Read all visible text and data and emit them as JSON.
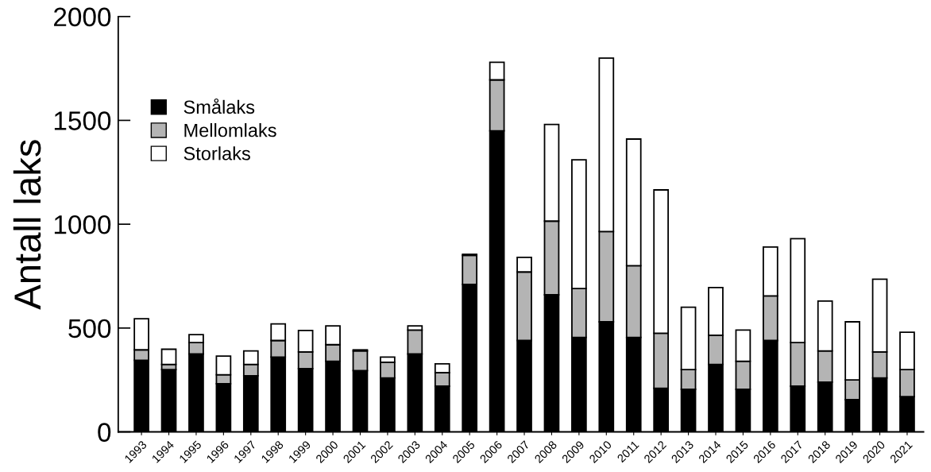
{
  "chart_data": {
    "type": "bar",
    "stacked": true,
    "ylabel": "Antall laks",
    "categories": [
      "1993",
      "1994",
      "1995",
      "1996",
      "1997",
      "1998",
      "1999",
      "2000",
      "2001",
      "2002",
      "2003",
      "2004",
      "2005",
      "2006",
      "2007",
      "2008",
      "2009",
      "2010",
      "2011",
      "2012",
      "2013",
      "2014",
      "2015",
      "2016",
      "2017",
      "2018",
      "2019",
      "2020",
      "2021"
    ],
    "series": [
      {
        "name": "Smålaks",
        "color": "#000000",
        "values": [
          345,
          300,
          375,
          232,
          270,
          360,
          305,
          340,
          295,
          260,
          375,
          220,
          710,
          1450,
          440,
          660,
          455,
          530,
          455,
          210,
          205,
          325,
          205,
          440,
          220,
          240,
          155,
          260,
          170
        ]
      },
      {
        "name": "Mellomlaks",
        "color": "#b4b4b4",
        "values": [
          50,
          25,
          55,
          43,
          55,
          80,
          80,
          80,
          95,
          75,
          115,
          65,
          140,
          245,
          330,
          355,
          235,
          435,
          345,
          265,
          95,
          140,
          135,
          215,
          210,
          150,
          95,
          125,
          130
        ]
      },
      {
        "name": "Storlaks",
        "color": "#ffffff",
        "values": [
          150,
          73,
          38,
          90,
          65,
          80,
          103,
          90,
          5,
          25,
          20,
          43,
          5,
          85,
          70,
          465,
          620,
          835,
          610,
          690,
          300,
          230,
          150,
          235,
          500,
          240,
          280,
          350,
          180
        ]
      }
    ],
    "ylim": [
      0,
      2000
    ],
    "yticks": [
      0,
      500,
      1000,
      1500,
      2000
    ],
    "grid": false,
    "legend": "upper left"
  }
}
